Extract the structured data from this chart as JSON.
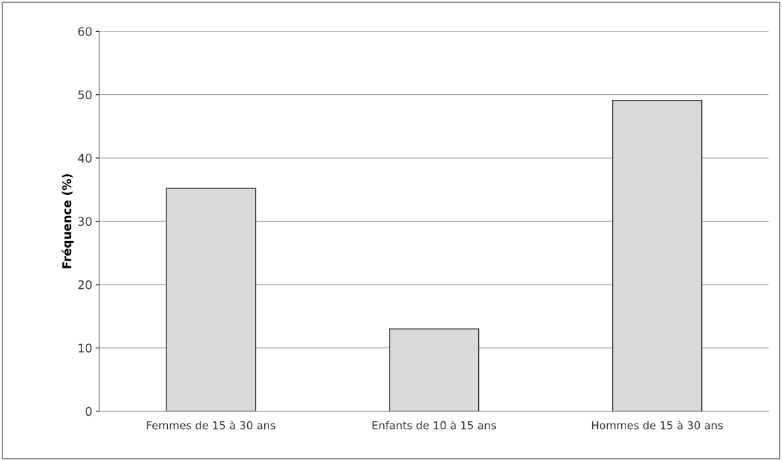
{
  "chart_data": {
    "type": "bar",
    "ylabel": "Fréquence (%)",
    "categories": [
      "Femmes de 15 à 30 ans",
      "Enfants de 10 à 15 ans",
      "Hommes de 15 à 30 ans"
    ],
    "values": [
      35.2,
      13,
      49.1
    ],
    "color": "#d9d9d9",
    "ylim": [
      0,
      60
    ],
    "yticks": [
      0,
      10,
      20,
      30,
      40,
      50,
      60
    ],
    "grid": "y",
    "legend": false
  }
}
